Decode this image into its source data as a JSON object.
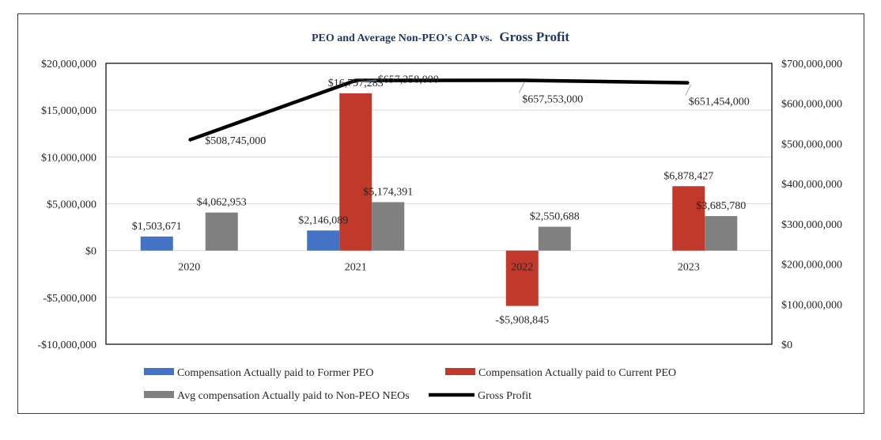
{
  "chart_data": {
    "type": "bar",
    "title_main": "PEO and Average Non-PEO's CAP vs.",
    "title_emph": "Gross Profit",
    "categories": [
      "2020",
      "2021",
      "2022",
      "2023"
    ],
    "y_left": {
      "min": -10000000,
      "max": 20000000,
      "ticks": [
        20000000,
        15000000,
        10000000,
        5000000,
        0,
        -5000000,
        -10000000
      ],
      "tick_labels": [
        "$20,000,000",
        "$15,000,000",
        "$10,000,000",
        "$5,000,000",
        "$0",
        "-$5,000,000",
        "-$10,000,000"
      ]
    },
    "y_right": {
      "min": 0,
      "max": 700000000,
      "ticks": [
        700000000,
        600000000,
        500000000,
        400000000,
        300000000,
        200000000,
        100000000,
        0
      ],
      "tick_labels": [
        "$700,000,000",
        "$600,000,000",
        "$500,000,000",
        "$400,000,000",
        "$300,000,000",
        "$200,000,000",
        "$100,000,000",
        "$0"
      ]
    },
    "series": [
      {
        "name": "Compensation Actually paid to Former PEO",
        "color": "#4472c4",
        "values": [
          1503671,
          2146089,
          null,
          null
        ],
        "labels": [
          "$1,503,671",
          "$2,146,089",
          "",
          ""
        ]
      },
      {
        "name": "Compensation Actually paid to Current PEO",
        "color": "#c0392b",
        "values": [
          null,
          16797283,
          -5908845,
          6878427
        ],
        "labels": [
          "",
          "$16,797,283",
          "-$5,908,845",
          "$6,878,427"
        ]
      },
      {
        "name": "Avg compensation Actually paid to Non-PEO NEOs",
        "color": "#808080",
        "values": [
          4062953,
          5174391,
          2550688,
          3685780
        ],
        "labels": [
          "$4,062,953",
          "$5,174,391",
          "$2,550,688",
          "$3,685,780"
        ]
      }
    ],
    "line_series": {
      "name": "Gross Profit",
      "color": "#000000",
      "axis": "right",
      "values": [
        508745000,
        657358000,
        657553000,
        651454000
      ],
      "labels": [
        "$508,745,000",
        "$657,358,000",
        "$657,553,000",
        "$651,454,000"
      ]
    },
    "legend_position": "bottom",
    "grid": true
  }
}
